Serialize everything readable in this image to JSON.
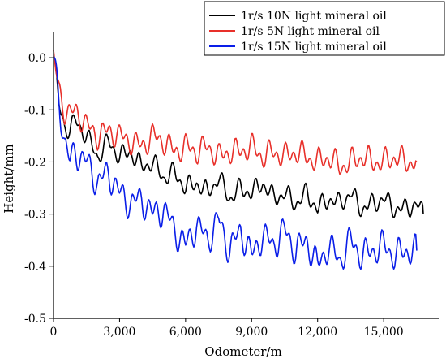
{
  "chart_data": {
    "type": "line",
    "xlabel": "Odometer/m",
    "ylabel": "Height/mm",
    "xlim": [
      0,
      17500
    ],
    "ylim": [
      -0.5,
      0.05
    ],
    "x_ticks": [
      0,
      3000,
      6000,
      9000,
      12000,
      15000
    ],
    "x_tick_labels": [
      "0",
      "3,000",
      "6,000",
      "9,000",
      "12,000",
      "15,000"
    ],
    "y_ticks": [
      0.0,
      -0.1,
      -0.2,
      -0.3,
      -0.4,
      -0.5
    ],
    "y_tick_labels": [
      "0.0",
      "-0.1",
      "-0.2",
      "-0.3",
      "-0.4",
      "-0.5"
    ],
    "grid": false,
    "legend_position": "top-right",
    "series": [
      {
        "name": "1r/s 10N light mineral oil",
        "color": "#000000",
        "x": [
          0,
          250,
          500,
          750,
          1000,
          1500,
          2000,
          2500,
          3000,
          3500,
          4000,
          4500,
          5000,
          5500,
          6000,
          6500,
          7000,
          7500,
          8000,
          8500,
          9000,
          9500,
          10000,
          10500,
          11000,
          11500,
          12000,
          12500,
          13000,
          13500,
          14000,
          14500,
          15000,
          15500,
          16000,
          16500,
          16800
        ],
        "y": [
          0.0,
          -0.09,
          -0.13,
          -0.14,
          -0.12,
          -0.15,
          -0.19,
          -0.16,
          -0.19,
          -0.18,
          -0.21,
          -0.2,
          -0.23,
          -0.22,
          -0.25,
          -0.24,
          -0.26,
          -0.23,
          -0.27,
          -0.25,
          -0.26,
          -0.24,
          -0.27,
          -0.26,
          -0.28,
          -0.26,
          -0.29,
          -0.27,
          -0.28,
          -0.26,
          -0.29,
          -0.28,
          -0.27,
          -0.29,
          -0.29,
          -0.28,
          -0.3
        ]
      },
      {
        "name": "1r/s 5N light mineral oil",
        "color": "#e8302a",
        "x": [
          0,
          250,
          500,
          750,
          1000,
          1500,
          2000,
          2500,
          3000,
          3500,
          4000,
          4500,
          5000,
          5500,
          6000,
          6500,
          7000,
          7500,
          8000,
          8500,
          9000,
          9500,
          10000,
          10500,
          11000,
          11500,
          12000,
          12500,
          13000,
          13500,
          14000,
          14500,
          15000,
          15500,
          16000,
          16500
        ],
        "y": [
          0.0,
          -0.06,
          -0.1,
          -0.11,
          -0.1,
          -0.13,
          -0.15,
          -0.14,
          -0.15,
          -0.16,
          -0.17,
          -0.15,
          -0.16,
          -0.18,
          -0.17,
          -0.18,
          -0.17,
          -0.19,
          -0.18,
          -0.18,
          -0.17,
          -0.19,
          -0.18,
          -0.19,
          -0.18,
          -0.19,
          -0.2,
          -0.19,
          -0.21,
          -0.2,
          -0.19,
          -0.2,
          -0.2,
          -0.19,
          -0.2,
          -0.2
        ]
      },
      {
        "name": "1r/s 15N light mineral oil",
        "color": "#0a1ee8",
        "x": [
          0,
          250,
          500,
          750,
          1000,
          1500,
          2000,
          2500,
          3000,
          3500,
          4000,
          4500,
          5000,
          5500,
          6000,
          6500,
          7000,
          7500,
          8000,
          8500,
          9000,
          9500,
          10000,
          10500,
          11000,
          11500,
          12000,
          12500,
          13000,
          13500,
          14000,
          14500,
          15000,
          15500,
          16000,
          16500
        ],
        "y": [
          0.0,
          -0.08,
          -0.16,
          -0.2,
          -0.18,
          -0.2,
          -0.24,
          -0.22,
          -0.26,
          -0.28,
          -0.27,
          -0.3,
          -0.29,
          -0.33,
          -0.36,
          -0.32,
          -0.35,
          -0.31,
          -0.37,
          -0.33,
          -0.38,
          -0.34,
          -0.36,
          -0.33,
          -0.37,
          -0.35,
          -0.4,
          -0.36,
          -0.39,
          -0.35,
          -0.38,
          -0.37,
          -0.36,
          -0.38,
          -0.37,
          -0.37
        ]
      }
    ]
  }
}
